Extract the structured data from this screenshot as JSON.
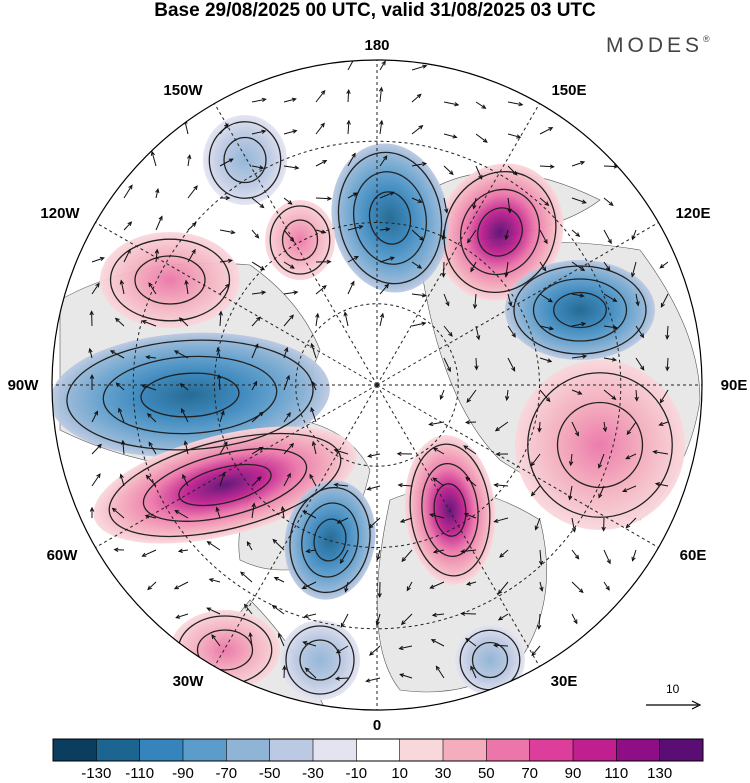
{
  "title": "Base 29/08/2025 00 UTC, valid 31/08/2025 03 UTC",
  "brand": "MODES",
  "brand_mark": "®",
  "longitude_labels": {
    "lon_180": "180",
    "lon_150e": "150E",
    "lon_120e": "120E",
    "lon_90e": "90E",
    "lon_60e": "60E",
    "lon_30e": "30E",
    "lon_0": "0",
    "lon_30w": "30W",
    "lon_60w": "60W",
    "lon_90w": "90W",
    "lon_120w": "120W",
    "lon_150w": "150W"
  },
  "reference_vector": "10",
  "colorbar": {
    "colors": [
      "#0b3d5e",
      "#1c6590",
      "#3584bb",
      "#5b9ccb",
      "#8fb4d6",
      "#bcc9e2",
      "#e4e4f1",
      "#ffffff",
      "#f9d8dc",
      "#f4adbd",
      "#ec76a9",
      "#dd3e9b",
      "#bf1f8f",
      "#8e0f85",
      "#5a0d73"
    ],
    "labels": [
      "-130",
      "-110",
      "-90",
      "-70",
      "-50",
      "-30",
      "-10",
      "10",
      "30",
      "50",
      "70",
      "90",
      "110",
      "130"
    ]
  },
  "anomaly_features": [
    {
      "id": "neg-90w",
      "value": -110
    },
    {
      "id": "pos-60w",
      "value": 120
    },
    {
      "id": "neg-45w",
      "value": -80
    },
    {
      "id": "pos-150e",
      "value": 120
    },
    {
      "id": "neg-170e",
      "value": -80
    },
    {
      "id": "neg-115e",
      "value": -75
    },
    {
      "id": "pos-120w",
      "value": 50
    },
    {
      "id": "pos-140w",
      "value": 45
    },
    {
      "id": "neg-160w",
      "value": -35
    },
    {
      "id": "pos-20e",
      "value": 70
    },
    {
      "id": "pos-75e",
      "value": 35
    },
    {
      "id": "pos-30w",
      "value": 25
    },
    {
      "id": "neg-15w",
      "value": -25
    },
    {
      "id": "neg-25e",
      "value": -20
    }
  ]
}
